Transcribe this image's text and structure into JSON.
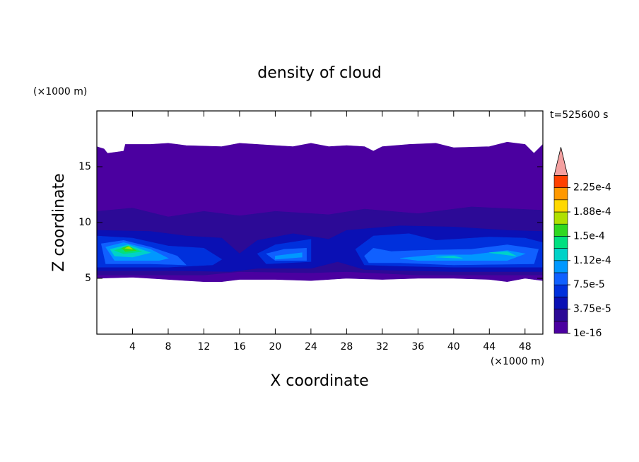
{
  "chart_data": {
    "type": "contour",
    "title": "density of cloud",
    "xlabel": "X coordinate",
    "ylabel": "Z coordinate",
    "x_unit": "(×1000 m)",
    "y_unit": "(×1000 m)",
    "time_label": "t=525600 s",
    "xlim": [
      0,
      50
    ],
    "ylim": [
      0,
      20
    ],
    "xticks": [
      4,
      8,
      12,
      16,
      20,
      24,
      28,
      32,
      36,
      40,
      44,
      48
    ],
    "yticks": [
      5,
      10,
      15
    ],
    "levels": [
      1e-16,
      1.875e-05,
      3.75e-05,
      5.625e-05,
      7.5e-05,
      9.375e-05,
      0.0001125,
      0.00013125,
      0.00015,
      0.00016875,
      0.0001875,
      0.00020625,
      0.000225
    ],
    "colors": [
      "#4b00a0",
      "#2c0a96",
      "#0a10b4",
      "#0030dc",
      "#1060ff",
      "#0098ff",
      "#00d2c8",
      "#00e080",
      "#30d820",
      "#b0e000",
      "#ffd800",
      "#ff9800",
      "#ff4000"
    ],
    "over_color": "#f4a0a0",
    "colorbar_ticks": [
      {
        "value": 1e-16,
        "label": "1e-16"
      },
      {
        "value": 3.75e-05,
        "label": "3.75e-5"
      },
      {
        "value": 7.5e-05,
        "label": "7.5e-5"
      },
      {
        "value": 0.0001125,
        "label": "1.12e-4"
      },
      {
        "value": 0.00015,
        "label": "1.5e-4"
      },
      {
        "value": 0.0001875,
        "label": "1.88e-4"
      },
      {
        "value": 0.000225,
        "label": "2.25e-4"
      }
    ],
    "field": [
      [
        [
          [
            0,
            16.8
          ],
          [
            0.8,
            16.6
          ],
          [
            1.2,
            16.2
          ],
          [
            3,
            16.4
          ],
          [
            3.2,
            17
          ],
          [
            6,
            17
          ],
          [
            8,
            17.1
          ],
          [
            10,
            16.9
          ],
          [
            14,
            16.8
          ],
          [
            16,
            17.1
          ],
          [
            20,
            16.9
          ],
          [
            22,
            16.8
          ],
          [
            24,
            17.1
          ],
          [
            26,
            16.8
          ],
          [
            28,
            16.9
          ],
          [
            30,
            16.8
          ],
          [
            31,
            16.4
          ],
          [
            32,
            16.8
          ],
          [
            35,
            17
          ],
          [
            38,
            17.1
          ],
          [
            40,
            16.7
          ],
          [
            44,
            16.8
          ],
          [
            46,
            17.2
          ],
          [
            48,
            17
          ],
          [
            49,
            16.2
          ],
          [
            50,
            17
          ],
          [
            50,
            4.8
          ],
          [
            48,
            5
          ],
          [
            46,
            4.7
          ],
          [
            44,
            4.9
          ],
          [
            40,
            5
          ],
          [
            36,
            5
          ],
          [
            32,
            4.9
          ],
          [
            28,
            5
          ],
          [
            24,
            4.8
          ],
          [
            20,
            4.9
          ],
          [
            16,
            4.9
          ],
          [
            14,
            4.7
          ],
          [
            12,
            4.7
          ],
          [
            10,
            4.8
          ],
          [
            8,
            4.9
          ],
          [
            4,
            5.1
          ],
          [
            0,
            5
          ]
        ]
      ],
      [
        [
          [
            0,
            11
          ],
          [
            4,
            11.3
          ],
          [
            8,
            10.5
          ],
          [
            12,
            11
          ],
          [
            16,
            10.6
          ],
          [
            20,
            11
          ],
          [
            26,
            10.7
          ],
          [
            30,
            11.2
          ],
          [
            36,
            10.8
          ],
          [
            42,
            11.4
          ],
          [
            50,
            11.1
          ],
          [
            50,
            5.3
          ],
          [
            36,
            5.3
          ],
          [
            28,
            5.6
          ],
          [
            24,
            5.5
          ],
          [
            16,
            5.6
          ],
          [
            12,
            5.3
          ],
          [
            0,
            5.3
          ]
        ]
      ],
      [
        [
          [
            0,
            9.3
          ],
          [
            6,
            9.2
          ],
          [
            10,
            8.8
          ],
          [
            14,
            8.6
          ],
          [
            16,
            7.2
          ],
          [
            18,
            8.4
          ],
          [
            22,
            9
          ],
          [
            26,
            8.5
          ],
          [
            28,
            9.3
          ],
          [
            34,
            9.7
          ],
          [
            40,
            9.6
          ],
          [
            46,
            9.3
          ],
          [
            50,
            9.2
          ],
          [
            50,
            5.6
          ],
          [
            40,
            5.6
          ],
          [
            30,
            5.8
          ],
          [
            27,
            6.5
          ],
          [
            24,
            5.9
          ],
          [
            18,
            5.9
          ],
          [
            15,
            5.6
          ],
          [
            8,
            5.7
          ],
          [
            0,
            5.7
          ]
        ]
      ],
      [
        [
          [
            0,
            8.8
          ],
          [
            4,
            8.6
          ],
          [
            8,
            7.9
          ],
          [
            12,
            7.7
          ],
          [
            14,
            6.7
          ],
          [
            13,
            6.2
          ],
          [
            8,
            6
          ],
          [
            0,
            6
          ]
        ],
        [
          [
            18,
            7.2
          ],
          [
            20,
            8
          ],
          [
            24,
            8.5
          ],
          [
            24,
            6.5
          ],
          [
            19,
            6.3
          ]
        ],
        [
          [
            29,
            7.6
          ],
          [
            31,
            8.8
          ],
          [
            35,
            9
          ],
          [
            38,
            8.4
          ],
          [
            44,
            8.7
          ],
          [
            48,
            8.6
          ],
          [
            50,
            8.2
          ],
          [
            50,
            6
          ],
          [
            40,
            6
          ],
          [
            34,
            6.1
          ],
          [
            30,
            6.2
          ]
        ]
      ],
      [
        [
          [
            0.5,
            8.1
          ],
          [
            3,
            8.4
          ],
          [
            6,
            7.8
          ],
          [
            9,
            7
          ],
          [
            10,
            6.2
          ],
          [
            6,
            6.3
          ],
          [
            1,
            6.3
          ]
        ],
        [
          [
            19,
            7.2
          ],
          [
            21,
            7.6
          ],
          [
            23.5,
            7.7
          ],
          [
            23.5,
            6.6
          ],
          [
            20,
            6.6
          ]
        ],
        [
          [
            30,
            7
          ],
          [
            31,
            7.7
          ],
          [
            33,
            7.4
          ],
          [
            36,
            7.5
          ],
          [
            42,
            7.6
          ],
          [
            46,
            8
          ],
          [
            49.5,
            7.6
          ],
          [
            49,
            6.3
          ],
          [
            40,
            6.2
          ],
          [
            34,
            6.4
          ],
          [
            30.5,
            6.4
          ]
        ]
      ],
      [
        [
          [
            1,
            7.8
          ],
          [
            3,
            8.2
          ],
          [
            6,
            7.6
          ],
          [
            8,
            6.8
          ],
          [
            7,
            6.6
          ],
          [
            2,
            6.6
          ]
        ],
        [
          [
            20,
            7
          ],
          [
            23,
            7.3
          ],
          [
            23,
            6.9
          ],
          [
            20,
            6.7
          ]
        ],
        [
          [
            34,
            6.8
          ],
          [
            38,
            7.1
          ],
          [
            42,
            7.1
          ],
          [
            46,
            7.5
          ],
          [
            48,
            7.2
          ],
          [
            46,
            6.6
          ],
          [
            40,
            6.6
          ],
          [
            36,
            6.6
          ]
        ]
      ],
      [
        [
          [
            1.5,
            7.6
          ],
          [
            3.5,
            8
          ],
          [
            6,
            7.3
          ],
          [
            4,
            6.9
          ],
          [
            2,
            7
          ]
        ],
        [
          [
            44,
            7.3
          ],
          [
            46,
            7.4
          ],
          [
            47,
            7
          ]
        ],
        [
          [
            38,
            6.9
          ],
          [
            40,
            7
          ],
          [
            41,
            6.8
          ]
        ]
      ],
      [
        [
          [
            2,
            7.5
          ],
          [
            3.5,
            7.9
          ],
          [
            5,
            7.4
          ],
          [
            3,
            7.2
          ]
        ]
      ],
      [
        [
          [
            2.8,
            7.7
          ],
          [
            3.5,
            7.9
          ],
          [
            4.4,
            7.5
          ],
          [
            3.2,
            7.4
          ]
        ]
      ],
      [
        [
          [
            3.2,
            7.7
          ],
          [
            3.6,
            7.85
          ],
          [
            4,
            7.6
          ]
        ]
      ],
      [],
      [],
      []
    ]
  }
}
